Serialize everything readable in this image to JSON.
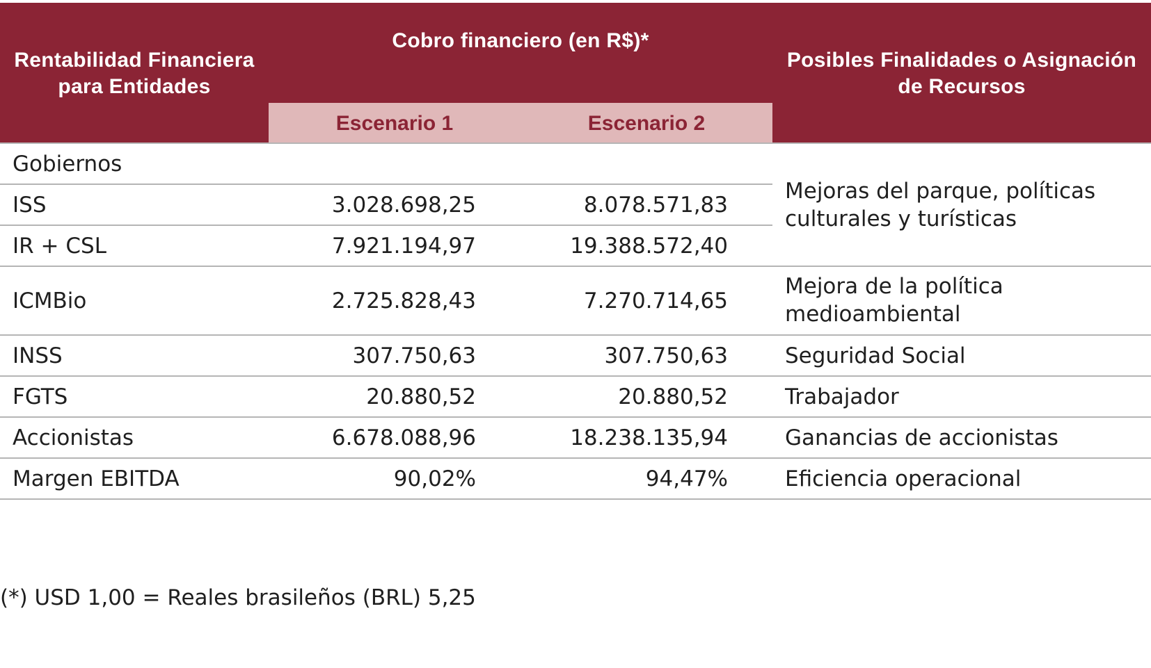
{
  "header": {
    "col1": "Rentabilidad Financiera para Entidades",
    "col2": "Cobro financiero (en R$)*",
    "col3": "Posibles Finalidades o Asignación de Recursos",
    "scenario1": "Escenario 1",
    "scenario2": "Escenario 2"
  },
  "rows": [
    {
      "label": "Gobiernos",
      "s1": "",
      "s2": ""
    },
    {
      "label": "ISS",
      "s1": "3.028.698,25",
      "s2": "8.078.571,83"
    },
    {
      "label": "IR + CSL",
      "s1": "7.921.194,97",
      "s2": "19.388.572,40"
    },
    {
      "label": "ICMBio",
      "s1": "2.725.828,43",
      "s2": "7.270.714,65"
    },
    {
      "label": "INSS",
      "s1": "307.750,63",
      "s2": "307.750,63"
    },
    {
      "label": "FGTS",
      "s1": "20.880,52",
      "s2": "20.880,52"
    },
    {
      "label": "Accionistas",
      "s1": "6.678.088,96",
      "s2": "18.238.135,94"
    },
    {
      "label": "Margen EBITDA",
      "s1": "90,02%",
      "s2": "94,47%"
    }
  ],
  "purposes": {
    "governments_line1": "Mejoras del parque, políticas",
    "governments_line2": "culturales y turísticas",
    "icmbio_line1": "Mejora de la política",
    "icmbio_line2": "medioambiental",
    "inss": "Seguridad Social",
    "fgts": "Trabajador",
    "shareholders": "Ganancias de accionistas",
    "ebitda": "Eficiencia operacional"
  },
  "footnote": "(*) USD 1,00 = Reales brasileños (BRL) 5,25",
  "colors": {
    "header_bg": "#8b2435",
    "subheader_bg": "#e0b8b9",
    "subheader_text": "#8b2435",
    "rule": "#b5b5b5"
  }
}
